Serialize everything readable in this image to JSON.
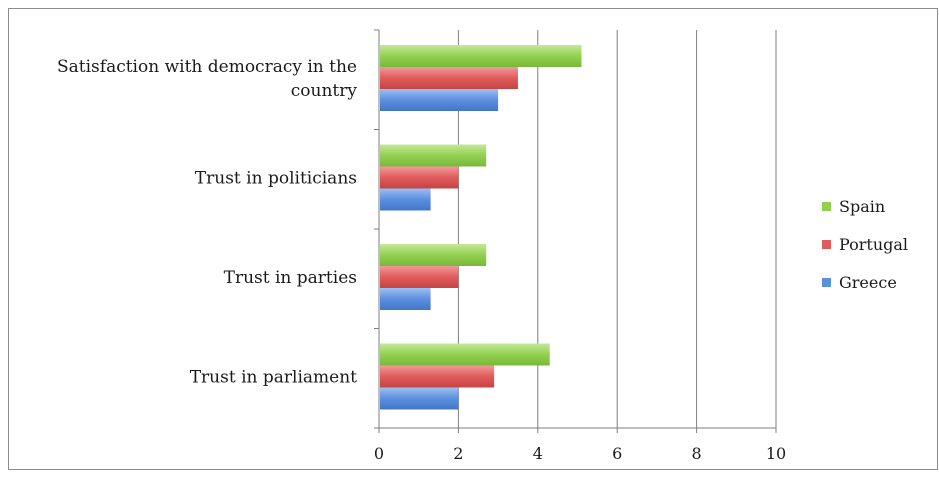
{
  "chart_data": {
    "type": "bar",
    "orientation": "horizontal",
    "categories": [
      [
        "Satisfaction with democracy in the",
        "country"
      ],
      [
        "Trust in politicians"
      ],
      [
        "Trust in parties"
      ],
      [
        "Trust in parliament"
      ]
    ],
    "series": [
      {
        "name": "Spain",
        "color": "#92d050",
        "values": [
          5.1,
          2.7,
          2.7,
          4.3
        ]
      },
      {
        "name": "Portugal",
        "color": "#e15b5b",
        "values": [
          3.5,
          2.0,
          2.0,
          2.9
        ]
      },
      {
        "name": "Greece",
        "color": "#5b8fe0",
        "values": [
          3.0,
          1.3,
          1.3,
          2.0
        ]
      }
    ],
    "xlim": [
      0,
      10
    ],
    "xticks": [
      0,
      2,
      4,
      6,
      8,
      10
    ],
    "grid": "vertical",
    "legend_position": "right"
  }
}
